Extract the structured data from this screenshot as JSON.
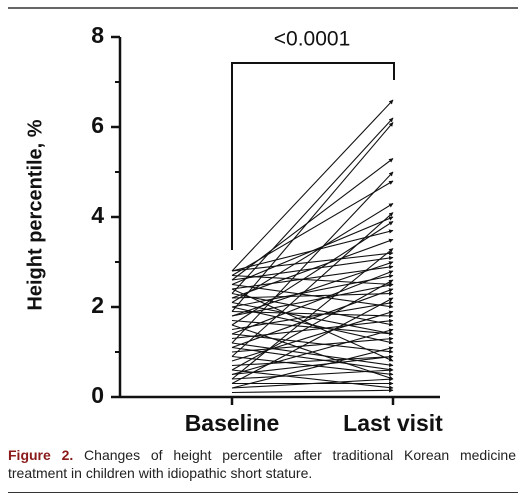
{
  "chart_data": {
    "type": "paired",
    "y_label": "Height percentile, %",
    "categories": [
      "Baseline",
      "Last visit"
    ],
    "annotation": "<0.0001",
    "ylim": [
      0,
      8
    ],
    "yticks": [
      0,
      2,
      4,
      6,
      8
    ],
    "minor_yticks": [
      1,
      3,
      5,
      7
    ],
    "color": "#111111",
    "pairs": [
      [
        2.8,
        6.6
      ],
      [
        2.3,
        6.2
      ],
      [
        1.9,
        6.1
      ],
      [
        2.6,
        5.3
      ],
      [
        1.2,
        5.0
      ],
      [
        2.7,
        4.8
      ],
      [
        2.1,
        4.3
      ],
      [
        0.9,
        4.1
      ],
      [
        2.5,
        4.0
      ],
      [
        1.6,
        3.9
      ],
      [
        2.8,
        3.7
      ],
      [
        2.2,
        3.5
      ],
      [
        0.4,
        3.3
      ],
      [
        2.8,
        3.2
      ],
      [
        2.6,
        3.1
      ],
      [
        1.8,
        3.0
      ],
      [
        2.4,
        2.9
      ],
      [
        1.4,
        2.8
      ],
      [
        2.0,
        2.7
      ],
      [
        0.6,
        2.6
      ],
      [
        2.7,
        2.5
      ],
      [
        1.1,
        2.4
      ],
      [
        2.2,
        2.3
      ],
      [
        0.3,
        2.2
      ],
      [
        1.5,
        2.1
      ],
      [
        2.5,
        2.0
      ],
      [
        0.8,
        1.9
      ],
      [
        1.9,
        1.8
      ],
      [
        1.3,
        1.7
      ],
      [
        2.3,
        1.6
      ],
      [
        0.5,
        1.5
      ],
      [
        1.7,
        1.4
      ],
      [
        1.0,
        1.3
      ],
      [
        2.0,
        1.2
      ],
      [
        0.2,
        1.1
      ],
      [
        1.4,
        1.0
      ],
      [
        0.7,
        0.9
      ],
      [
        2.4,
        0.8
      ],
      [
        1.2,
        0.7
      ],
      [
        0.4,
        0.6
      ],
      [
        0.9,
        0.5
      ],
      [
        1.6,
        0.4
      ],
      [
        0.3,
        0.3
      ],
      [
        0.6,
        0.2
      ],
      [
        0.1,
        0.15
      ],
      [
        1.1,
        0.6
      ],
      [
        2.1,
        1.4
      ],
      [
        0.5,
        0.9
      ],
      [
        1.8,
        2.5
      ],
      [
        0.2,
        0.4
      ]
    ],
    "caption_label": "Figure 2.",
    "caption": "Changes of height percentile after traditional Korean medicine treatment in children with idiopathic short stature."
  }
}
